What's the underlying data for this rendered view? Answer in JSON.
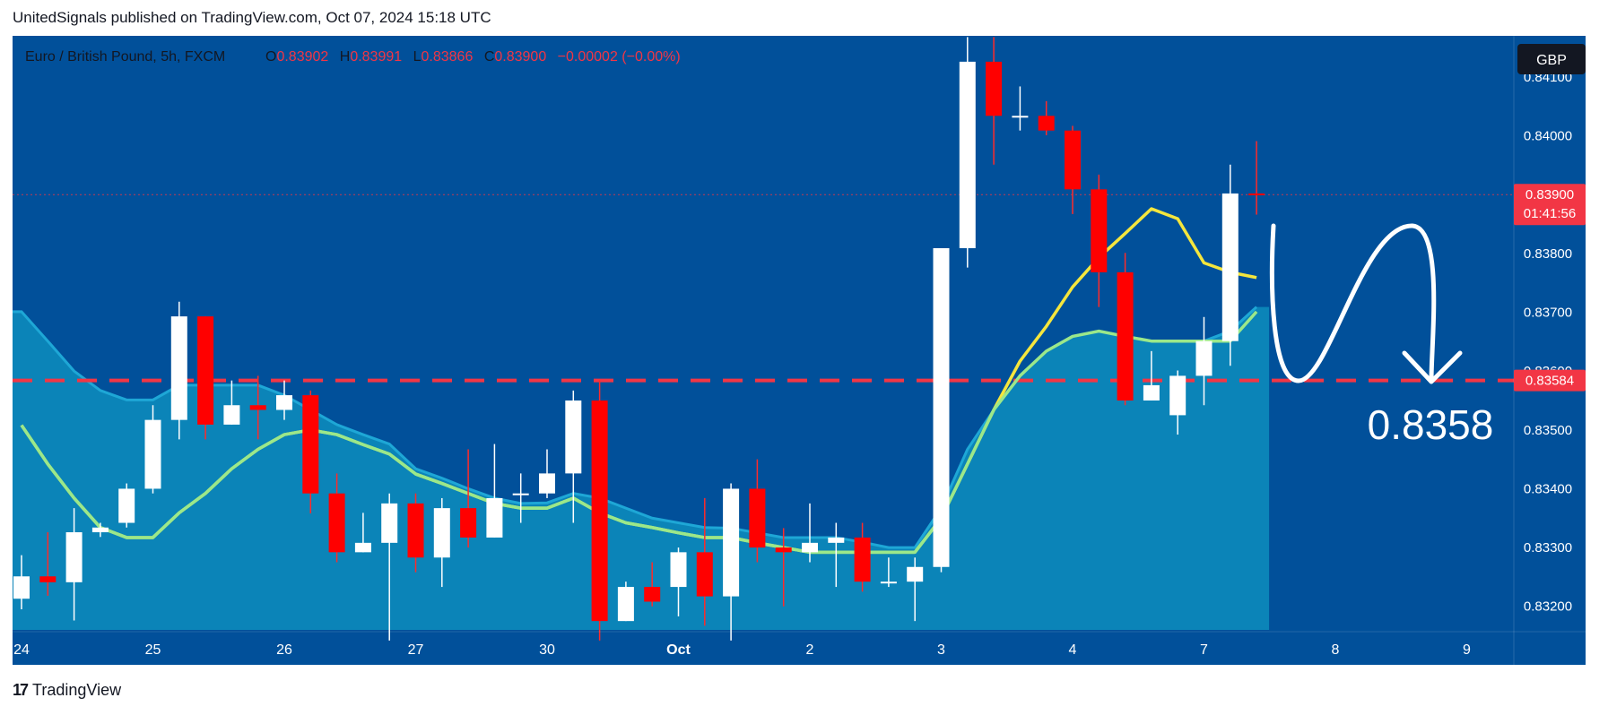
{
  "header": {
    "publisher_line": "UnitedSignals published on TradingView.com, Oct 07, 2024 15:18 UTC"
  },
  "footer": {
    "brand": "TradingView"
  },
  "legend": {
    "symbol": "Euro / British Pound, 5h, FXCM",
    "o_label": "O",
    "o_value": "0.83902",
    "h_label": "H",
    "h_value": "0.83991",
    "l_label": "L",
    "l_value": "0.83866",
    "c_label": "C",
    "c_value": "0.83900",
    "change": "−0.00002 (−0.00%)"
  },
  "currency_badge": "GBP",
  "price_badge": {
    "price": "0.83900",
    "countdown": "01:41:56"
  },
  "level_badge": "0.83584",
  "annotation": "0.8358",
  "colors": {
    "background": "#01509a",
    "area_fill": "#0b84b8",
    "area_line": "#1ea7d6",
    "ma_yellow": "#f5e63d",
    "ma_green": "#9be88a",
    "bull": "#ffffff",
    "bear": "#ff0000",
    "level": "#f23645"
  },
  "chart_data": {
    "type": "candlestick",
    "symbol": "EUR/GBP",
    "timeframe": "5h",
    "ylim": [
      0.8316,
      0.8417
    ],
    "y_ticks": [
      "0.83200",
      "0.83300",
      "0.83400",
      "0.83500",
      "0.83600",
      "0.83700",
      "0.83800",
      "0.84000",
      "0.84100"
    ],
    "x_ticks": [
      {
        "label": "24",
        "index": 0
      },
      {
        "label": "25",
        "index": 5
      },
      {
        "label": "26",
        "index": 10
      },
      {
        "label": "27",
        "index": 15
      },
      {
        "label": "30",
        "index": 20
      },
      {
        "label": "Oct",
        "index": 25
      },
      {
        "label": "2",
        "index": 30
      },
      {
        "label": "3",
        "index": 35
      },
      {
        "label": "4",
        "index": 40
      },
      {
        "label": "7",
        "index": 45
      },
      {
        "label": "8",
        "index": 50
      },
      {
        "label": "9",
        "index": 55
      }
    ],
    "candles": [
      {
        "o": 0.83213,
        "h": 0.83287,
        "l": 0.83195,
        "c": 0.83251
      },
      {
        "o": 0.83251,
        "h": 0.83326,
        "l": 0.83218,
        "c": 0.83241
      },
      {
        "o": 0.83241,
        "h": 0.83367,
        "l": 0.83176,
        "c": 0.83326
      },
      {
        "o": 0.83326,
        "h": 0.83342,
        "l": 0.83318,
        "c": 0.83334
      },
      {
        "o": 0.83342,
        "h": 0.83409,
        "l": 0.83334,
        "c": 0.834
      },
      {
        "o": 0.834,
        "h": 0.83542,
        "l": 0.83392,
        "c": 0.83517
      },
      {
        "o": 0.83517,
        "h": 0.83718,
        "l": 0.83484,
        "c": 0.83693
      },
      {
        "o": 0.83693,
        "h": 0.83693,
        "l": 0.83484,
        "c": 0.83509
      },
      {
        "o": 0.83509,
        "h": 0.83584,
        "l": 0.83509,
        "c": 0.83542
      },
      {
        "o": 0.83542,
        "h": 0.83592,
        "l": 0.83484,
        "c": 0.83534
      },
      {
        "o": 0.83534,
        "h": 0.83584,
        "l": 0.83517,
        "c": 0.83559
      },
      {
        "o": 0.83559,
        "h": 0.83567,
        "l": 0.83358,
        "c": 0.83392
      },
      {
        "o": 0.83392,
        "h": 0.83426,
        "l": 0.83275,
        "c": 0.83292
      },
      {
        "o": 0.83292,
        "h": 0.83359,
        "l": 0.83292,
        "c": 0.83308
      },
      {
        "o": 0.83308,
        "h": 0.83392,
        "l": 0.83142,
        "c": 0.83375
      },
      {
        "o": 0.83375,
        "h": 0.83392,
        "l": 0.83258,
        "c": 0.83283
      },
      {
        "o": 0.83283,
        "h": 0.83384,
        "l": 0.83233,
        "c": 0.83367
      },
      {
        "o": 0.83367,
        "h": 0.83467,
        "l": 0.833,
        "c": 0.83317
      },
      {
        "o": 0.83317,
        "h": 0.83476,
        "l": 0.83317,
        "c": 0.83384
      },
      {
        "o": 0.83392,
        "h": 0.83426,
        "l": 0.83342,
        "c": 0.83392
      },
      {
        "o": 0.83392,
        "h": 0.83467,
        "l": 0.83384,
        "c": 0.83426
      },
      {
        "o": 0.83426,
        "h": 0.83567,
        "l": 0.83342,
        "c": 0.8355
      },
      {
        "o": 0.8355,
        "h": 0.83584,
        "l": 0.83142,
        "c": 0.83175
      },
      {
        "o": 0.83175,
        "h": 0.83242,
        "l": 0.83175,
        "c": 0.83233
      },
      {
        "o": 0.83233,
        "h": 0.83275,
        "l": 0.832,
        "c": 0.83208
      },
      {
        "o": 0.83233,
        "h": 0.833,
        "l": 0.83183,
        "c": 0.83292
      },
      {
        "o": 0.83292,
        "h": 0.83384,
        "l": 0.83167,
        "c": 0.83217
      },
      {
        "o": 0.83217,
        "h": 0.83409,
        "l": 0.83142,
        "c": 0.834
      },
      {
        "o": 0.834,
        "h": 0.8345,
        "l": 0.83275,
        "c": 0.833
      },
      {
        "o": 0.833,
        "h": 0.83333,
        "l": 0.832,
        "c": 0.83292
      },
      {
        "o": 0.83292,
        "h": 0.83375,
        "l": 0.83275,
        "c": 0.83308
      },
      {
        "o": 0.83308,
        "h": 0.83342,
        "l": 0.83233,
        "c": 0.83317
      },
      {
        "o": 0.83317,
        "h": 0.83342,
        "l": 0.83225,
        "c": 0.83242
      },
      {
        "o": 0.83242,
        "h": 0.83283,
        "l": 0.83233,
        "c": 0.83242
      },
      {
        "o": 0.83242,
        "h": 0.83283,
        "l": 0.83175,
        "c": 0.83267
      },
      {
        "o": 0.83267,
        "h": 0.83809,
        "l": 0.83258,
        "c": 0.83809
      },
      {
        "o": 0.83809,
        "h": 0.84168,
        "l": 0.83776,
        "c": 0.84126
      },
      {
        "o": 0.84126,
        "h": 0.84168,
        "l": 0.83951,
        "c": 0.84034
      },
      {
        "o": 0.84034,
        "h": 0.84084,
        "l": 0.84009,
        "c": 0.84034
      },
      {
        "o": 0.84034,
        "h": 0.84059,
        "l": 0.84001,
        "c": 0.84009
      },
      {
        "o": 0.84009,
        "h": 0.84017,
        "l": 0.83867,
        "c": 0.83909
      },
      {
        "o": 0.83909,
        "h": 0.83934,
        "l": 0.83709,
        "c": 0.83768
      },
      {
        "o": 0.83768,
        "h": 0.83801,
        "l": 0.83542,
        "c": 0.8355
      },
      {
        "o": 0.8355,
        "h": 0.83634,
        "l": 0.8355,
        "c": 0.83576
      },
      {
        "o": 0.83525,
        "h": 0.83601,
        "l": 0.83492,
        "c": 0.83592
      },
      {
        "o": 0.83592,
        "h": 0.83692,
        "l": 0.83542,
        "c": 0.83651
      },
      {
        "o": 0.83651,
        "h": 0.83951,
        "l": 0.83609,
        "c": 0.83902
      },
      {
        "o": 0.83902,
        "h": 0.83991,
        "l": 0.83866,
        "c": 0.839
      }
    ],
    "ma_yellow": [
      0.83508,
      0.83442,
      0.83384,
      0.83334,
      0.83317,
      0.83317,
      0.83359,
      0.83392,
      0.83434,
      0.83467,
      0.83492,
      0.835,
      0.83492,
      0.83475,
      0.83459,
      0.83425,
      0.83409,
      0.83392,
      0.83375,
      0.83367,
      0.83367,
      0.83384,
      0.83359,
      0.83342,
      0.83334,
      0.83325,
      0.83317,
      0.83317,
      0.83308,
      0.833,
      0.83292,
      0.83292,
      0.83292,
      0.83292,
      0.83292,
      0.8335,
      0.83442,
      0.83534,
      0.83617,
      0.83676,
      0.83743,
      0.83793,
      0.83834,
      0.83876,
      0.83859,
      0.83784,
      0.83768,
      0.83759
    ],
    "ma_green": [
      0.83508,
      0.83442,
      0.83384,
      0.83334,
      0.83317,
      0.83317,
      0.83359,
      0.83392,
      0.83434,
      0.83467,
      0.83492,
      0.835,
      0.83492,
      0.83475,
      0.83459,
      0.83425,
      0.83409,
      0.83392,
      0.83375,
      0.83367,
      0.83367,
      0.83384,
      0.83359,
      0.83342,
      0.83334,
      0.83325,
      0.83317,
      0.83317,
      0.83308,
      0.833,
      0.83292,
      0.83292,
      0.83292,
      0.83292,
      0.83292,
      0.8335,
      0.83442,
      0.83534,
      0.83592,
      0.83634,
      0.83659,
      0.83668,
      0.83659,
      0.83651,
      0.83651,
      0.83651,
      0.83651,
      0.83701
    ],
    "area_top": [
      0.83701,
      0.83651,
      0.836,
      0.83567,
      0.83551,
      0.83551,
      0.83576,
      0.83576,
      0.83576,
      0.83576,
      0.83559,
      0.83534,
      0.83509,
      0.83492,
      0.83476,
      0.83434,
      0.83418,
      0.834,
      0.83384,
      0.83375,
      0.83376,
      0.83392,
      0.83384,
      0.83367,
      0.8335,
      0.83342,
      0.83334,
      0.83333,
      0.83325,
      0.83317,
      0.83317,
      0.83317,
      0.83309,
      0.833,
      0.833,
      0.83367,
      0.83467,
      0.83534,
      0.83592,
      0.83634,
      0.83659,
      0.83668,
      0.83659,
      0.83651,
      0.83651,
      0.83651,
      0.83668,
      0.83709
    ],
    "level": 0.83584,
    "current_price": 0.839
  }
}
